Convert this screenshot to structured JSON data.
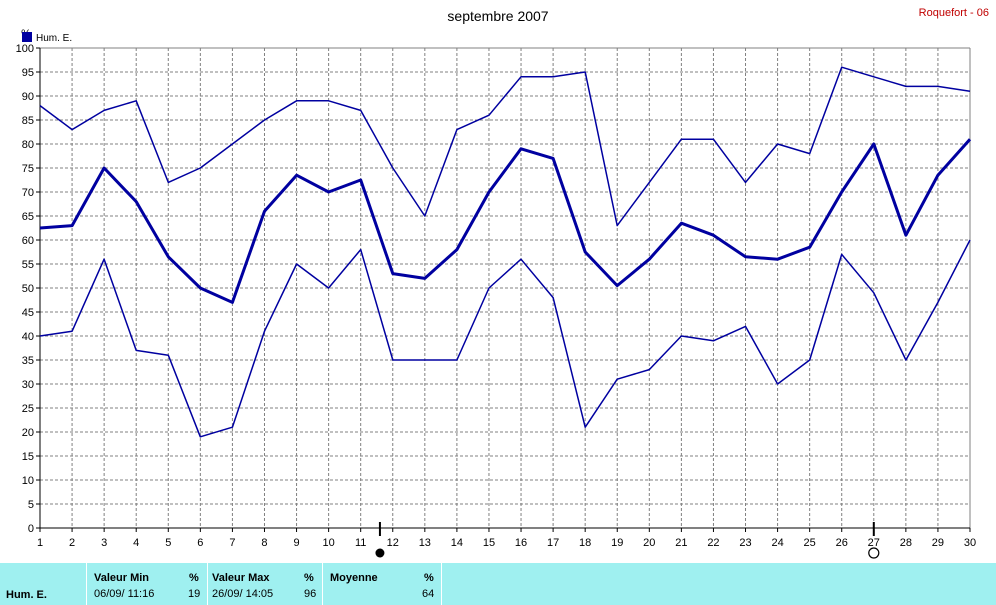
{
  "header": {
    "title": "septembre 2007",
    "station": "Roquefort - 06"
  },
  "chart_data": {
    "type": "line",
    "title": "septembre 2007",
    "ylabel": "%",
    "xlabel": "",
    "ylim": [
      0,
      100
    ],
    "ytick_step": 5,
    "x": [
      1,
      2,
      3,
      4,
      5,
      6,
      7,
      8,
      9,
      10,
      11,
      12,
      13,
      14,
      15,
      16,
      17,
      18,
      19,
      20,
      21,
      22,
      23,
      24,
      25,
      26,
      27,
      28,
      29,
      30
    ],
    "legend": {
      "label": "Hum. E.",
      "position": "top-left"
    },
    "grid": true,
    "color": "#0000a0",
    "series": [
      {
        "key": "max",
        "values": [
          88,
          83,
          87,
          89,
          72,
          75,
          80,
          85,
          89,
          89,
          87,
          75,
          65,
          83,
          86,
          94,
          94,
          95,
          63,
          72,
          81,
          81,
          72,
          80,
          78,
          96,
          94,
          92,
          92,
          91
        ]
      },
      {
        "key": "mean",
        "values": [
          62.5,
          63,
          75,
          68,
          56.5,
          50,
          47,
          66,
          73.5,
          70,
          72.5,
          53,
          52,
          58,
          70,
          79,
          77,
          57.5,
          50.5,
          56,
          63.5,
          61,
          56.5,
          56,
          58.5,
          70,
          80,
          61,
          73.5,
          81
        ]
      },
      {
        "key": "min",
        "values": [
          40,
          41,
          56,
          37,
          36,
          19,
          21,
          41,
          55,
          50,
          58,
          35,
          35,
          35,
          50,
          56,
          48,
          21,
          31,
          33,
          40,
          39,
          42,
          30,
          35,
          57,
          49,
          35,
          47,
          60
        ]
      }
    ],
    "markers": [
      {
        "type": "filled-circle",
        "x": 11.6
      },
      {
        "type": "open-circle",
        "x": 27
      }
    ]
  },
  "stats": {
    "series_label": "Hum. E.",
    "min": {
      "label": "Valeur Min",
      "unit": "%",
      "date": "06/09/ 11:16",
      "value": "19"
    },
    "max": {
      "label": "Valeur Max",
      "unit": "%",
      "date": "26/09/ 14:05",
      "value": "96"
    },
    "mean": {
      "label": "Moyenne",
      "unit": "%",
      "value": "64"
    }
  }
}
